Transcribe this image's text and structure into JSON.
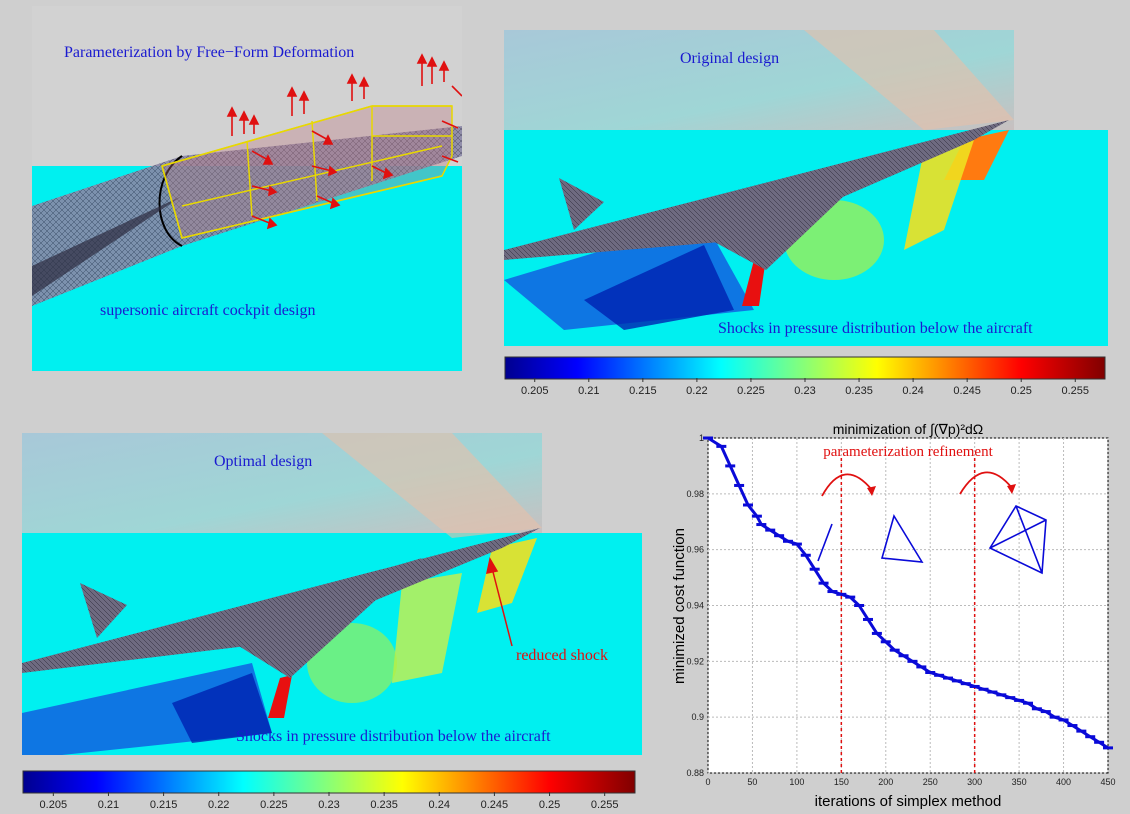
{
  "panels": {
    "ffd": {
      "title": "Parameterization by Free−Form Deformation",
      "caption": "supersonic aircraft cockpit design"
    },
    "original": {
      "title": "Original design",
      "caption": "Shocks in pressure distribution below the aircraft"
    },
    "optimal": {
      "title": "Optimal design",
      "caption": "Shocks in pressure distribution below the aircraft",
      "annotation": "reduced shock"
    }
  },
  "colorbar": {
    "ticks": [
      "0.205",
      "0.21",
      "0.215",
      "0.22",
      "0.225",
      "0.23",
      "0.235",
      "0.24",
      "0.245",
      "0.25",
      "0.255"
    ]
  },
  "chart_data": {
    "type": "scatter",
    "title": "minimization of ∫(∇p)²dΩ",
    "xlabel": "iterations of simplex method",
    "ylabel": "minimized cost function",
    "xlim": [
      0,
      450
    ],
    "ylim": [
      0.88,
      1.0
    ],
    "xticks": [
      "0",
      "50",
      "100",
      "150",
      "200",
      "250",
      "300",
      "350",
      "400",
      "450"
    ],
    "yticks": [
      "0.88",
      "0.9",
      "0.92",
      "0.94",
      "0.96",
      "0.98",
      "1"
    ],
    "grid": true,
    "annotation": "parameterization refinement",
    "refinement_lines_x": [
      150,
      300
    ],
    "series": [
      {
        "color": "#0a0ad8",
        "x": [
          0,
          15,
          25,
          35,
          45,
          55,
          60,
          70,
          80,
          90,
          100,
          110,
          120,
          130,
          140,
          150,
          160,
          170,
          180,
          190,
          200,
          210,
          220,
          230,
          240,
          250,
          260,
          270,
          280,
          290,
          300,
          310,
          320,
          330,
          340,
          350,
          360,
          370,
          380,
          390,
          400,
          410,
          420,
          430,
          440,
          450
        ],
        "y": [
          1.0,
          0.997,
          0.99,
          0.983,
          0.976,
          0.972,
          0.969,
          0.967,
          0.965,
          0.963,
          0.962,
          0.958,
          0.953,
          0.948,
          0.945,
          0.944,
          0.943,
          0.94,
          0.935,
          0.93,
          0.927,
          0.924,
          0.922,
          0.92,
          0.918,
          0.916,
          0.915,
          0.914,
          0.913,
          0.912,
          0.911,
          0.91,
          0.909,
          0.908,
          0.907,
          0.906,
          0.905,
          0.903,
          0.902,
          0.9,
          0.899,
          0.897,
          0.895,
          0.893,
          0.891,
          0.889
        ]
      }
    ]
  },
  "colors": {
    "caption_blue": "#1a1ad0",
    "annotation_red": "#e01010",
    "background_cyan": "#00f0f0",
    "ffd_box": "#e8d800",
    "arrow_red": "#e01010"
  }
}
